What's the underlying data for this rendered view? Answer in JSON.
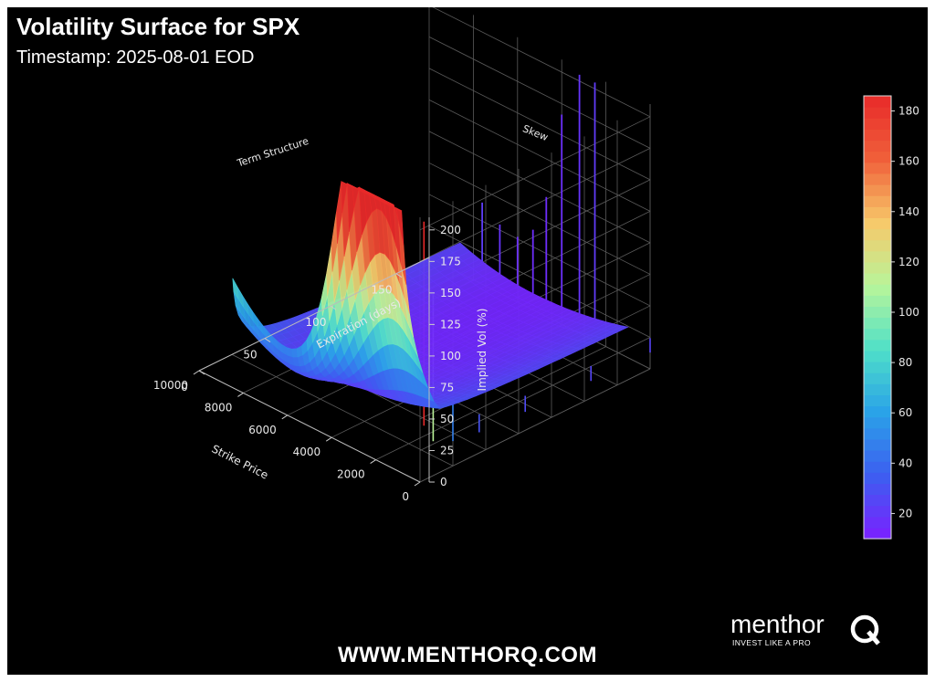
{
  "header": {
    "title": "Volatility Surface for SPX",
    "subtitle": "Timestamp: 2025-08-01 EOD"
  },
  "footer": {
    "website": "WWW.MENTHORQ.COM",
    "brand_name": "menthor",
    "brand_tagline": "INVEST LIKE A PRO",
    "brand_mark_icon": "menthorq-q-logo-icon"
  },
  "colors": {
    "background": "#000000",
    "text": "#ffffff",
    "grid": "#5a5a5a",
    "colormap": [
      "#7b1fff",
      "#3d5ef0",
      "#2aa2e8",
      "#4fe0c8",
      "#b8f59a",
      "#f7c96a",
      "#f0603a",
      "#e82a2a"
    ]
  },
  "chart_data": {
    "type": "surface",
    "title": "Volatility Surface for SPX",
    "subtitle": "Timestamp: 2025-08-01 EOD",
    "xlabel": "Strike Price",
    "ylabel": "Expiration (days)",
    "zlabel": "Implied Vol (%)",
    "x_ticks": [
      0,
      2000,
      4000,
      6000,
      8000,
      10000
    ],
    "y_ticks": [
      0,
      50,
      100,
      150
    ],
    "z_ticks": [
      0,
      25,
      50,
      75,
      100,
      125,
      150,
      175,
      200
    ],
    "xlim": [
      0,
      10000
    ],
    "ylim": [
      0,
      175
    ],
    "zlim": [
      0,
      210
    ],
    "colorbar": {
      "ticks": [
        20,
        40,
        60,
        80,
        100,
        120,
        140,
        160,
        180
      ],
      "range": [
        10,
        186
      ]
    },
    "grid": true,
    "panels": {
      "back_left": "Term Structure",
      "back_right": "Skew"
    },
    "surface_extent": {
      "strike": [
        1000,
        8600
      ],
      "expiration": [
        2,
        175
      ]
    }
  }
}
